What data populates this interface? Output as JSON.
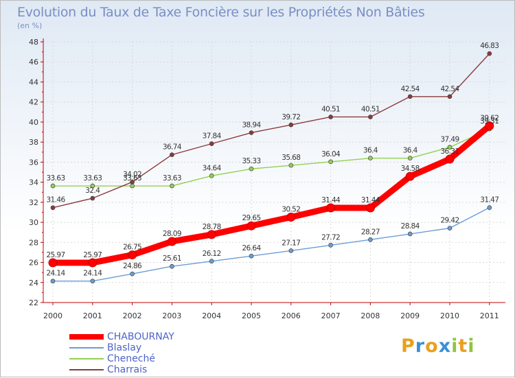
{
  "title": "Evolution du Taux de Taxe Foncière sur les Propriétés Non Bâties",
  "unit": "(en %)",
  "logo": {
    "letters": [
      "P",
      "r",
      "o",
      "x",
      "i",
      "t",
      "i"
    ],
    "colors": [
      "#e8a020",
      "#3a8fd8",
      "#e8a020",
      "#3a8fd8",
      "#8cc63f",
      "#e8a020",
      "#8cc63f"
    ]
  },
  "chart_data": {
    "type": "line",
    "title": "Evolution du Taux de Taxe Foncière sur les Propriétés Non Bâties",
    "ylabel": "(en %)",
    "xlabel": "",
    "categories": [
      "2000",
      "2001",
      "2002",
      "2003",
      "2004",
      "2005",
      "2006",
      "2007",
      "2008",
      "2009",
      "2010",
      "2011"
    ],
    "ylim": [
      22,
      48
    ],
    "yticks": [
      "22",
      "24",
      "26",
      "28",
      "30",
      "32",
      "34",
      "36",
      "38",
      "40",
      "42",
      "44",
      "46",
      "48"
    ],
    "grid": true,
    "legend_position": "bottom-left",
    "series": [
      {
        "name": "CHABOURNAY",
        "color": "#ff0000",
        "emphasis": true,
        "values": [
          25.97,
          25.97,
          26.75,
          28.09,
          28.78,
          29.65,
          30.52,
          31.44,
          31.44,
          34.58,
          36.31,
          39.62
        ],
        "labels": [
          "25.97",
          "25.97",
          "26.75",
          "28.09",
          "28.78",
          "29.65",
          "30.52",
          "31.44",
          "31.44",
          "34.58",
          "36.31",
          "39.62"
        ]
      },
      {
        "name": "Blaslay",
        "color": "#6a9dd4",
        "emphasis": false,
        "values": [
          24.14,
          24.14,
          24.86,
          25.61,
          26.12,
          26.64,
          27.17,
          27.72,
          28.27,
          28.84,
          29.42,
          31.47
        ],
        "labels": [
          "24.14",
          "24.14",
          "24.86",
          "25.61",
          "26.12",
          "26.64",
          "27.17",
          "27.72",
          "28.27",
          "28.84",
          "29.42",
          "31.47"
        ]
      },
      {
        "name": "Cheneché",
        "color": "#92d050",
        "emphasis": false,
        "values": [
          33.63,
          33.63,
          33.63,
          33.63,
          34.64,
          35.33,
          35.68,
          36.04,
          36.4,
          36.4,
          37.49,
          39.31
        ],
        "labels": [
          "33.63",
          "33.63",
          "33.63",
          "33.63",
          "34.64",
          "35.33",
          "35.68",
          "36.04",
          "36.4",
          "36.4",
          "37.49",
          "39.31"
        ]
      },
      {
        "name": "Charrais",
        "color": "#8b3a3a",
        "emphasis": false,
        "values": [
          31.46,
          32.4,
          34.02,
          36.74,
          37.84,
          38.94,
          39.72,
          40.51,
          40.51,
          42.54,
          42.54,
          46.83
        ],
        "labels": [
          "31.46",
          "32.4",
          "34.02",
          "36.74",
          "37.84",
          "38.94",
          "39.72",
          "40.51",
          "40.51",
          "42.54",
          "42.54",
          "46.83"
        ]
      }
    ]
  }
}
